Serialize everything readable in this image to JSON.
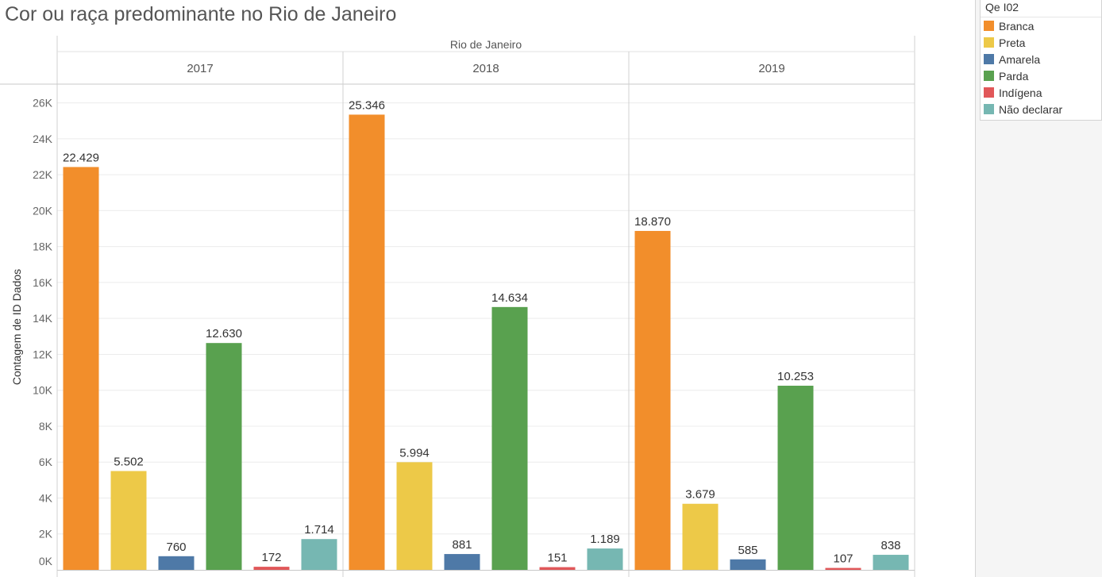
{
  "title": "Cor ou raça predominante no Rio de Janeiro",
  "legend": {
    "title": "Qe I02",
    "items": [
      {
        "label": "Branca",
        "color": "#f28e2b"
      },
      {
        "label": "Preta",
        "color": "#edc948"
      },
      {
        "label": "Amarela",
        "color": "#4e79a7"
      },
      {
        "label": "Parda",
        "color": "#59a14f"
      },
      {
        "label": "Indígena",
        "color": "#e15759"
      },
      {
        "label": "Não declarar",
        "color": "#76b7b2"
      }
    ]
  },
  "chart_data": {
    "type": "bar",
    "header": "Rio de Janeiro",
    "panels": [
      "2017",
      "2018",
      "2019"
    ],
    "categories": [
      "Branca",
      "Preta",
      "Amarela",
      "Parda",
      "Indígena",
      "Não declarar"
    ],
    "values": [
      [
        22429,
        5502,
        760,
        12630,
        172,
        1714
      ],
      [
        25346,
        5994,
        881,
        14634,
        151,
        1189
      ],
      [
        18870,
        3679,
        585,
        10253,
        107,
        838
      ]
    ],
    "value_labels": [
      [
        "22.429",
        "5.502",
        "760",
        "12.630",
        "172",
        "1.714"
      ],
      [
        "25.346",
        "5.994",
        "881",
        "14.634",
        "151",
        "1.189"
      ],
      [
        "18.870",
        "3.679",
        "585",
        "10.253",
        "107",
        "838"
      ]
    ],
    "ylabel": "Contagem de ID Dados",
    "ylim": [
      0,
      27000
    ],
    "yticks": [
      0,
      2000,
      4000,
      6000,
      8000,
      10000,
      12000,
      14000,
      16000,
      18000,
      20000,
      22000,
      24000,
      26000
    ],
    "ytick_labels": [
      "0K",
      "2K",
      "4K",
      "6K",
      "8K",
      "10K",
      "12K",
      "14K",
      "16K",
      "18K",
      "20K",
      "22K",
      "24K",
      "26K"
    ],
    "grid": true,
    "legend_position": "top-right"
  }
}
